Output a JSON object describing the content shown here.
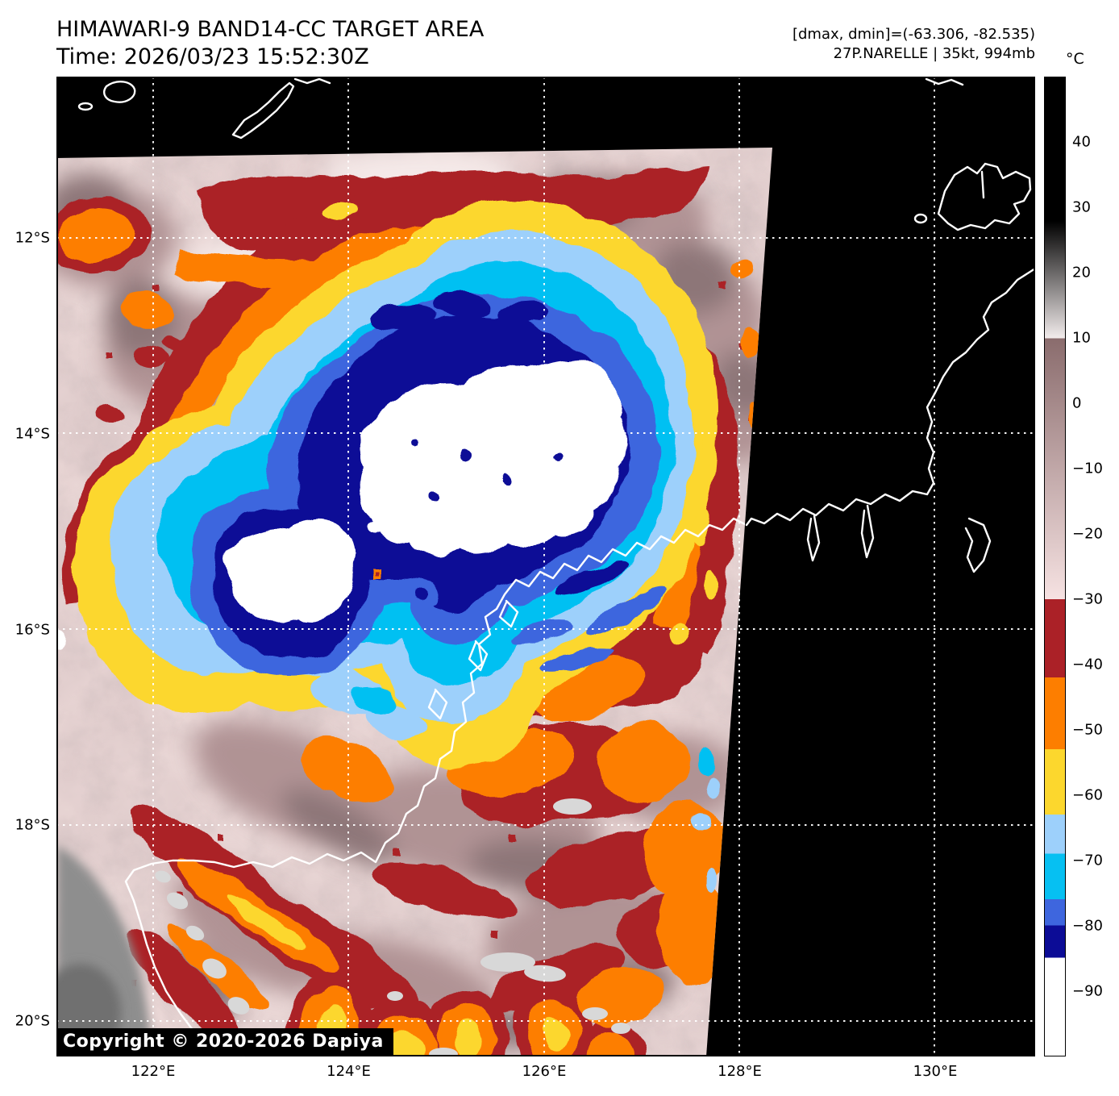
{
  "header": {
    "title": "HIMAWARI-9 BAND14-CC TARGET AREA",
    "time": "Time: 2026/03/23 15:52:30Z",
    "range_info": "[dmax, dmin]=(-63.306, -82.535)",
    "storm_info": "27P.NARELLE | 35kt, 994mb"
  },
  "colorbar": {
    "unit_label": "°C",
    "value_range": [
      -100,
      50
    ],
    "ticks": [
      {
        "value": 40,
        "label": "40"
      },
      {
        "value": 30,
        "label": "30"
      },
      {
        "value": 20,
        "label": "20"
      },
      {
        "value": 10,
        "label": "10"
      },
      {
        "value": 0,
        "label": "0"
      },
      {
        "value": -10,
        "label": "−10"
      },
      {
        "value": -20,
        "label": "−20"
      },
      {
        "value": -30,
        "label": "−30"
      },
      {
        "value": -40,
        "label": "−40"
      },
      {
        "value": -50,
        "label": "−50"
      },
      {
        "value": -60,
        "label": "−60"
      },
      {
        "value": -70,
        "label": "−70"
      },
      {
        "value": -80,
        "label": "−80"
      },
      {
        "value": -90,
        "label": "−90"
      }
    ],
    "stops": [
      {
        "value": 50,
        "color": "#000000"
      },
      {
        "value": 28,
        "color": "#000000"
      },
      {
        "value": 10,
        "color": "#f2ecec"
      },
      {
        "value": 10,
        "color": "#8a6c6d"
      },
      {
        "value": -30,
        "color": "#f6e2e2"
      },
      {
        "value": -30,
        "color": "#ab2127"
      },
      {
        "value": -42,
        "color": "#ab2127"
      },
      {
        "value": -42,
        "color": "#fd7e00"
      },
      {
        "value": -53,
        "color": "#fd7e00"
      },
      {
        "value": -53,
        "color": "#fcd72d"
      },
      {
        "value": -63,
        "color": "#fcd72d"
      },
      {
        "value": -63,
        "color": "#9dd0fb"
      },
      {
        "value": -69,
        "color": "#9dd0fb"
      },
      {
        "value": -69,
        "color": "#06c0f2"
      },
      {
        "value": -76,
        "color": "#06c0f2"
      },
      {
        "value": -76,
        "color": "#3e66de"
      },
      {
        "value": -80,
        "color": "#3e66de"
      },
      {
        "value": -80,
        "color": "#0c0c96"
      },
      {
        "value": -85,
        "color": "#0c0c96"
      },
      {
        "value": -85,
        "color": "#ffffff"
      },
      {
        "value": -100,
        "color": "#ffffff"
      }
    ]
  },
  "axes": {
    "x_ticks": [
      {
        "lon": 122,
        "label": "122°E"
      },
      {
        "lon": 124,
        "label": "124°E"
      },
      {
        "lon": 126,
        "label": "126°E"
      },
      {
        "lon": 128,
        "label": "128°E"
      },
      {
        "lon": 130,
        "label": "130°E"
      }
    ],
    "y_ticks": [
      {
        "lat": 12,
        "label": "12°S"
      },
      {
        "lat": 14,
        "label": "14°S"
      },
      {
        "lat": 16,
        "label": "16°S"
      },
      {
        "lat": 18,
        "label": "18°S"
      },
      {
        "lat": 20,
        "label": "20°S"
      }
    ]
  },
  "map": {
    "copyright": "Copyright © 2020-2026 Dapiya"
  },
  "palette": {
    "swath_base": "#ead7d6",
    "mauve": "#b09394",
    "gray_brown": "#8d7678",
    "pale_light": "#f4e9e8",
    "dark_red": "#ab2127",
    "orange": "#fd7e00",
    "yellow": "#fcd72d",
    "light_blue": "#9dd0fb",
    "cyan": "#06c0f2",
    "royal_blue": "#3e66de",
    "navy": "#0c0c96",
    "cold_white": "#ffffff",
    "land_gray": "#8e8e8e",
    "cloud_gray": "#d8d8d8",
    "coastline": "#ffffff",
    "background": "#000000",
    "grid": "#ffffff",
    "text": "#000000"
  }
}
